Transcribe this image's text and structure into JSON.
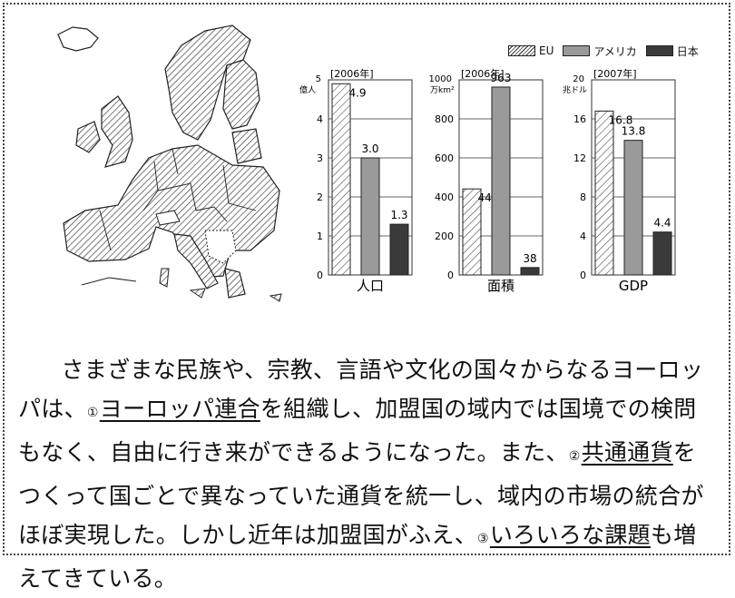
{
  "legend": [
    {
      "label": "EU",
      "pattern": "hatched"
    },
    {
      "label": "アメリカ",
      "color": "#9a9a9a"
    },
    {
      "label": "日本",
      "color": "#3a3a3a"
    }
  ],
  "chart_data": [
    {
      "type": "bar",
      "year_label": "[2006年]",
      "unit": "億人",
      "xlabel": "人口",
      "categories": [
        "EU",
        "アメリカ",
        "日本"
      ],
      "values": [
        4.9,
        3.0,
        1.3
      ],
      "value_labels": [
        "4.9",
        "3.0",
        "1.3"
      ],
      "ylim": [
        0,
        5
      ],
      "yticks": [
        0,
        1,
        2,
        3,
        4,
        5
      ],
      "grid": true
    },
    {
      "type": "bar",
      "year_label": "[2006年]",
      "unit": "万km²",
      "xlabel": "面積",
      "categories": [
        "EU",
        "アメリカ",
        "日本"
      ],
      "values": [
        441,
        963,
        38
      ],
      "value_labels": [
        "441",
        "963",
        "38"
      ],
      "ylim": [
        0,
        1000
      ],
      "yticks": [
        0,
        200,
        400,
        600,
        800,
        1000
      ],
      "grid": true
    },
    {
      "type": "bar",
      "year_label": "[2007年]",
      "unit": "兆ドル",
      "xlabel": "GDP",
      "categories": [
        "EU",
        "アメリカ",
        "日本"
      ],
      "values": [
        16.8,
        13.8,
        4.4
      ],
      "value_labels": [
        "16.8",
        "13.8",
        "4.4"
      ],
      "ylim": [
        0,
        20
      ],
      "yticks": [
        0,
        4,
        8,
        12,
        16,
        20
      ],
      "grid": true
    }
  ],
  "text": {
    "seg1": "さまざまな民族や、宗教、言語や文化の国々からなるヨーロッパは、",
    "n1": "①",
    "u1": "ヨーロッパ連合",
    "seg2": "を組織し、加盟国の域内では国境での検問もなく、自由に行き来ができるようになった。また、",
    "n2": "②",
    "u2": "共通通貨",
    "seg3": "をつくって国ごとで異なっていた通貨を統一し、域内の市場の統合がほぼ実現した。しかし近年は加盟国がふえ、",
    "n3": "③",
    "u3": "いろいろな課題",
    "seg4": "も増えてきている。"
  }
}
